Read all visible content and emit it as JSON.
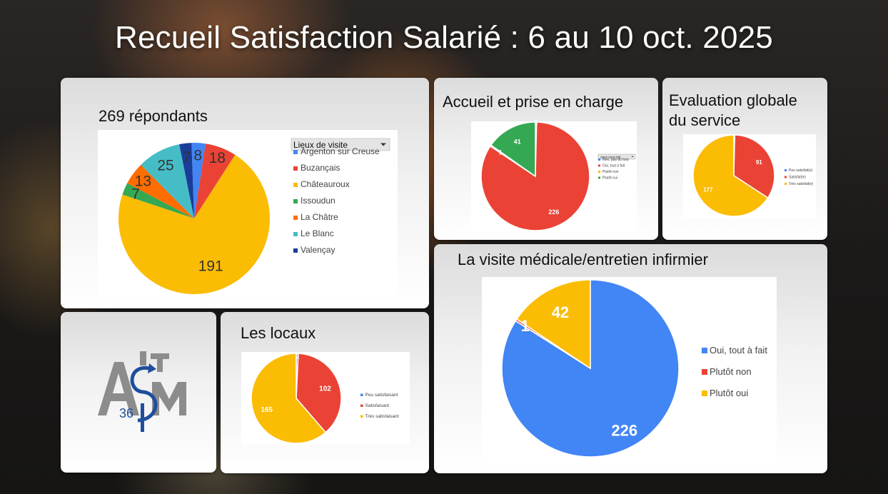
{
  "title": "Recueil Satisfaction Salarié : 6 au 10 oct. 2025",
  "panels": {
    "respondents": {
      "title": "269 répondants",
      "legend_header": "Lieux de visite",
      "legend_header_icon": "dropdown-arrow-icon"
    },
    "accueil": {
      "title": "Accueil et prise en charge",
      "legend_header": "Avez-vous été..."
    },
    "evaluation": {
      "title_line1": "Evaluation globale",
      "title_line2": "du service"
    },
    "locaux": {
      "title": "Les locaux"
    },
    "visite": {
      "title": "La visite médicale/entretien infirmier"
    },
    "logo": {
      "letters": "A I S M",
      "number": "36",
      "logo_icon": "aism-36-logo"
    }
  },
  "chart_data": [
    {
      "id": "respondents",
      "type": "pie",
      "title": "269 répondants",
      "legend_title": "Lieux de visite",
      "series": [
        {
          "name": "Argenton sur Creuse",
          "value": 8,
          "color": "#4285F4"
        },
        {
          "name": "Buzançais",
          "value": 18,
          "color": "#EA4335"
        },
        {
          "name": "Châteauroux",
          "value": 191,
          "color": "#FBBC04"
        },
        {
          "name": "Issoudun",
          "value": 7,
          "color": "#34A853"
        },
        {
          "name": "La Châtre",
          "value": 13,
          "color": "#FF6D01"
        },
        {
          "name": "Le Blanc",
          "value": 25,
          "color": "#46BDC6"
        },
        {
          "name": "Valençay",
          "value": 7,
          "color": "#1A3D99"
        }
      ],
      "legend": "right"
    },
    {
      "id": "accueil",
      "type": "pie",
      "title": "Accueil et prise en charge",
      "legend_title": "Avez-vous été...",
      "series": [
        {
          "name": "Non, pas du tout",
          "value": 1,
          "color": "#4285F4"
        },
        {
          "name": "Oui, tout à fait",
          "value": 226,
          "color": "#EA4335"
        },
        {
          "name": "Plutôt non",
          "value": 1,
          "color": "#FBBC04"
        },
        {
          "name": "Plutôt oui",
          "value": 41,
          "color": "#34A853"
        }
      ],
      "legend": "right"
    },
    {
      "id": "evaluation",
      "type": "pie",
      "title": "Evaluation globale du service",
      "series": [
        {
          "name": "Peu satisfait(e)",
          "value": 1,
          "color": "#4285F4"
        },
        {
          "name": "Satisfait(e)",
          "value": 91,
          "color": "#EA4335"
        },
        {
          "name": "Très satisfait(e)",
          "value": 177,
          "color": "#FBBC04"
        }
      ],
      "legend": "right"
    },
    {
      "id": "locaux",
      "type": "pie",
      "title": "Les locaux",
      "series": [
        {
          "name": "Peu satisfaisant",
          "value": 2,
          "color": "#4285F4"
        },
        {
          "name": "Satisfaisant",
          "value": 102,
          "color": "#EA4335"
        },
        {
          "name": "Très satisfaisant",
          "value": 165,
          "color": "#FBBC04"
        }
      ],
      "legend": "right"
    },
    {
      "id": "visite",
      "type": "pie",
      "title": "La visite médicale/entretien infirmier",
      "series": [
        {
          "name": "Oui, tout à fait",
          "value": 226,
          "color": "#4285F4"
        },
        {
          "name": "Plutôt non",
          "value": 1,
          "color": "#EA4335"
        },
        {
          "name": "Plutôt oui",
          "value": 42,
          "color": "#FBBC04"
        }
      ],
      "legend": "right"
    }
  ]
}
